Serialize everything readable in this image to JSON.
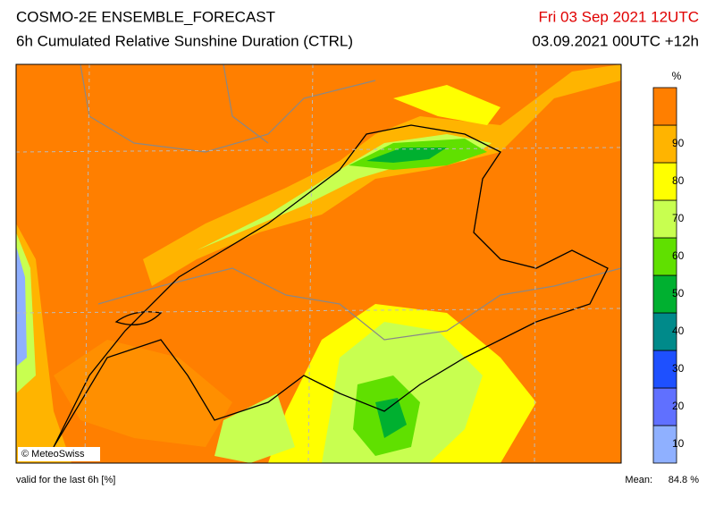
{
  "header": {
    "title": "COSMO-2E ENSEMBLE_FORECAST",
    "subtitle": "6h Cumulated Relative Sunshine Duration (CTRL)",
    "valid_time": "Fri 03 Sep 2021 12UTC",
    "run": "03.09.2021 00UTC +12h"
  },
  "map": {
    "credit": "© MeteoSwiss"
  },
  "colorbar": {
    "unit": "%",
    "ticks": [
      10,
      20,
      30,
      40,
      50,
      60,
      70,
      80,
      90
    ],
    "colors": [
      "#8fb0ff",
      "#6070ff",
      "#1e50ff",
      "#008a8a",
      "#00b030",
      "#60e000",
      "#c8ff50",
      "#ffff00",
      "#ffb400",
      "#ff7f00"
    ]
  },
  "footer": {
    "note": "valid for the last 6h [%]",
    "mean_label": "Mean:",
    "mean_value": "84.8 %"
  }
}
